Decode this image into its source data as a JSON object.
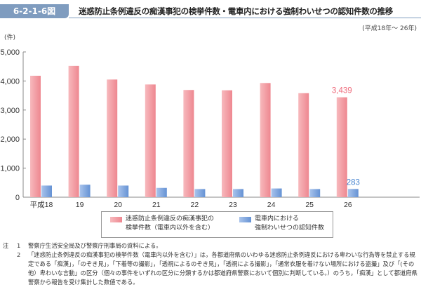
{
  "figure_number": "6-2-1-6図",
  "title": "迷惑防止条例違反の痴漢事犯の検挙件数・電車内における強制わいせつの認知件数の推移",
  "period": "(平成18年～ 26年)",
  "colors": {
    "badge": "#7f9cbf",
    "pink": "#f0949a",
    "blue": "#6f9ad8",
    "pink_label": "#ee6677",
    "blue_label": "#4a86d0"
  },
  "chart_data": {
    "type": "bar",
    "ylabel": "(件)",
    "ylim": [
      0,
      5000
    ],
    "yticks": [
      "0",
      "1,000",
      "2,000",
      "3,000",
      "4,000",
      "5,000"
    ],
    "ytick_values": [
      0,
      1000,
      2000,
      3000,
      4000,
      5000
    ],
    "categories": [
      "平成18",
      "19",
      "20",
      "21",
      "22",
      "23",
      "24",
      "25",
      "26"
    ],
    "grid": false,
    "legend_placement": "bottom",
    "series": [
      {
        "name": "迷惑防止条例違反の痴漢事犯の検挙件数（電車内以外を含む）",
        "legend_lines": [
          "迷惑防止条例違反の痴漢事犯の",
          "検挙件数（電車内以外を含む）"
        ],
        "values": [
          4180,
          4520,
          4050,
          3880,
          3690,
          3680,
          3930,
          3580,
          3439
        ],
        "data_label": "3,439"
      },
      {
        "name": "電車内における強制わいせつの認知件数",
        "legend_lines": [
          "電車内における",
          "強制わいせつの認知件数"
        ],
        "values": [
          400,
          430,
          400,
          320,
          280,
          280,
          300,
          280,
          283
        ],
        "data_label": "283"
      }
    ]
  },
  "notes": {
    "mark": "注",
    "items": [
      {
        "num": "1",
        "text": "警察庁生活安全局及び警察庁刑事局の資料による。"
      },
      {
        "num": "2",
        "text": "「迷惑防止条例違反の痴漢事犯の検挙件数（電車内以外を含む）」は，各都道府県のいわゆる迷惑防止条例違反における卑わいな行為等を禁止する規定である「痴漢」，「のぞき見」，「下着等の撮影」，「透視によるのぞき見」，「透視による撮影」，「通常衣服を着けない場所における盗撮」及び「(その他）卑わいな言動」の区分（個々の事件をいずれの区分に分類するかは都道府県警察において個別に判断している。）のうち，「痴漢」として都道府県警察から報告を受け集計した数値である。"
      }
    ]
  }
}
